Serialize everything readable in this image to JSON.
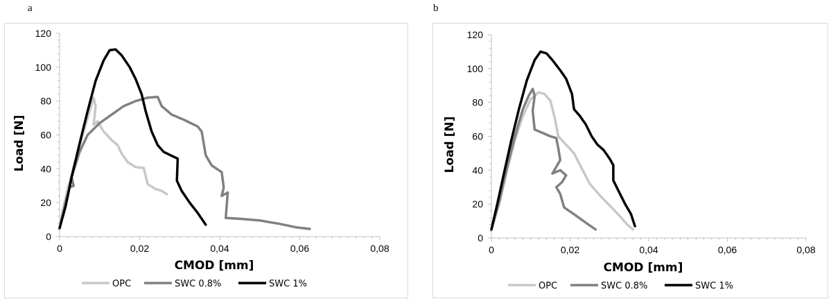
{
  "panels": [
    "a",
    "b"
  ],
  "chart_data": [
    {
      "type": "line",
      "panel": "a",
      "xlabel": "CMOD [mm]",
      "ylabel": "Load  [N]",
      "xlim": [
        0,
        0.08
      ],
      "ylim": [
        0,
        120
      ],
      "xticks": [
        "0",
        "0,02",
        "0,04",
        "0,06",
        "0,08"
      ],
      "yticks": [
        "0",
        "20",
        "40",
        "60",
        "80",
        "100",
        "120"
      ],
      "grid": false,
      "legend": "bottom",
      "series": [
        {
          "name": "OPC",
          "color": "#c8c8c8",
          "points": [
            [
              0,
              5
            ],
            [
              0.001,
              18
            ],
            [
              0.002,
              28
            ],
            [
              0.004,
              45
            ],
            [
              0.006,
              62
            ],
            [
              0.0075,
              74
            ],
            [
              0.0085,
              82
            ],
            [
              0.009,
              77
            ],
            [
              0.0085,
              66
            ],
            [
              0.0095,
              68
            ],
            [
              0.011,
              62
            ],
            [
              0.013,
              57
            ],
            [
              0.0145,
              54
            ],
            [
              0.0155,
              49
            ],
            [
              0.017,
              44
            ],
            [
              0.019,
              41
            ],
            [
              0.021,
              40.5
            ],
            [
              0.022,
              31
            ],
            [
              0.024,
              28
            ],
            [
              0.0255,
              27
            ],
            [
              0.0268,
              25
            ]
          ]
        },
        {
          "name": "SWC 0.8%",
          "color": "#808080",
          "points": [
            [
              0,
              5
            ],
            [
              0.0015,
              20
            ],
            [
              0.0025,
              29
            ],
            [
              0.0035,
              30
            ],
            [
              0.003,
              35
            ],
            [
              0.005,
              50
            ],
            [
              0.007,
              60
            ],
            [
              0.01,
              67
            ],
            [
              0.013,
              72
            ],
            [
              0.016,
              77
            ],
            [
              0.019,
              80
            ],
            [
              0.022,
              82
            ],
            [
              0.0245,
              82.5
            ],
            [
              0.0255,
              77
            ],
            [
              0.028,
              72
            ],
            [
              0.031,
              69
            ],
            [
              0.0345,
              65
            ],
            [
              0.0355,
              62
            ],
            [
              0.036,
              55
            ],
            [
              0.0365,
              48
            ],
            [
              0.038,
              42
            ],
            [
              0.0405,
              38
            ],
            [
              0.041,
              29
            ],
            [
              0.0405,
              24
            ],
            [
              0.042,
              26
            ],
            [
              0.0415,
              11
            ],
            [
              0.045,
              10.5
            ],
            [
              0.05,
              9.5
            ],
            [
              0.055,
              7.5
            ],
            [
              0.059,
              5.5
            ],
            [
              0.0625,
              4.5
            ]
          ]
        },
        {
          "name": "SWC 1%",
          "color": "#000000",
          "points": [
            [
              0,
              5
            ],
            [
              0.0015,
              18
            ],
            [
              0.003,
              35
            ],
            [
              0.005,
              55
            ],
            [
              0.007,
              74
            ],
            [
              0.009,
              92
            ],
            [
              0.011,
              104
            ],
            [
              0.0125,
              110
            ],
            [
              0.014,
              110.5
            ],
            [
              0.0155,
              107
            ],
            [
              0.0175,
              100
            ],
            [
              0.019,
              93
            ],
            [
              0.0205,
              84
            ],
            [
              0.0215,
              74
            ],
            [
              0.023,
              62
            ],
            [
              0.0245,
              54
            ],
            [
              0.026,
              50
            ],
            [
              0.0295,
              46
            ],
            [
              0.0293,
              33
            ],
            [
              0.0305,
              27
            ],
            [
              0.0325,
              20
            ],
            [
              0.0345,
              14
            ],
            [
              0.0365,
              7
            ]
          ]
        }
      ]
    },
    {
      "type": "line",
      "panel": "b",
      "xlabel": "CMOD  [mm]",
      "ylabel": "Load  [N]",
      "xlim": [
        0,
        0.08
      ],
      "ylim": [
        0,
        120
      ],
      "xticks": [
        "0",
        "0,02",
        "0,04",
        "0,06",
        "0,08"
      ],
      "yticks": [
        "0",
        "20",
        "40",
        "60",
        "80",
        "100",
        "120"
      ],
      "grid": false,
      "legend": "bottom",
      "series": [
        {
          "name": "OPC",
          "color": "#c8c8c8",
          "points": [
            [
              0,
              5
            ],
            [
              0.002,
              20
            ],
            [
              0.004,
              40
            ],
            [
              0.006,
              58
            ],
            [
              0.008,
              72
            ],
            [
              0.01,
              82
            ],
            [
              0.012,
              86
            ],
            [
              0.0135,
              85
            ],
            [
              0.015,
              81
            ],
            [
              0.016,
              72
            ],
            [
              0.017,
              60
            ],
            [
              0.019,
              55
            ],
            [
              0.021,
              50
            ],
            [
              0.023,
              41
            ],
            [
              0.025,
              32
            ],
            [
              0.028,
              24
            ],
            [
              0.031,
              17
            ],
            [
              0.033,
              12
            ],
            [
              0.0345,
              8
            ],
            [
              0.036,
              5
            ]
          ]
        },
        {
          "name": "SWC 0.8%",
          "color": "#808080",
          "points": [
            [
              0,
              5
            ],
            [
              0.002,
              22
            ],
            [
              0.004,
              42
            ],
            [
              0.006,
              60
            ],
            [
              0.008,
              76
            ],
            [
              0.0095,
              84
            ],
            [
              0.0105,
              88
            ],
            [
              0.011,
              84
            ],
            [
              0.0105,
              75
            ],
            [
              0.011,
              64
            ],
            [
              0.013,
              62
            ],
            [
              0.015,
              60
            ],
            [
              0.0165,
              59
            ],
            [
              0.017,
              53
            ],
            [
              0.0175,
              46
            ],
            [
              0.0155,
              38
            ],
            [
              0.0175,
              40
            ],
            [
              0.019,
              37
            ],
            [
              0.018,
              33
            ],
            [
              0.0165,
              30
            ],
            [
              0.0175,
              26
            ],
            [
              0.0185,
              18
            ],
            [
              0.021,
              14
            ],
            [
              0.024,
              9
            ],
            [
              0.0265,
              5
            ]
          ]
        },
        {
          "name": "SWC 1%",
          "color": "#000000",
          "points": [
            [
              0,
              5
            ],
            [
              0.0015,
              20
            ],
            [
              0.003,
              36
            ],
            [
              0.005,
              57
            ],
            [
              0.007,
              76
            ],
            [
              0.009,
              93
            ],
            [
              0.011,
              105
            ],
            [
              0.0125,
              110
            ],
            [
              0.014,
              109
            ],
            [
              0.0155,
              105
            ],
            [
              0.0175,
              99
            ],
            [
              0.019,
              94
            ],
            [
              0.0205,
              85
            ],
            [
              0.021,
              76
            ],
            [
              0.0225,
              72
            ],
            [
              0.024,
              67
            ],
            [
              0.0255,
              60
            ],
            [
              0.027,
              55
            ],
            [
              0.0285,
              52
            ],
            [
              0.03,
              47
            ],
            [
              0.031,
              43
            ],
            [
              0.031,
              34
            ],
            [
              0.0325,
              27
            ],
            [
              0.034,
              20
            ],
            [
              0.0355,
              14
            ],
            [
              0.0365,
              7
            ]
          ]
        }
      ]
    }
  ]
}
